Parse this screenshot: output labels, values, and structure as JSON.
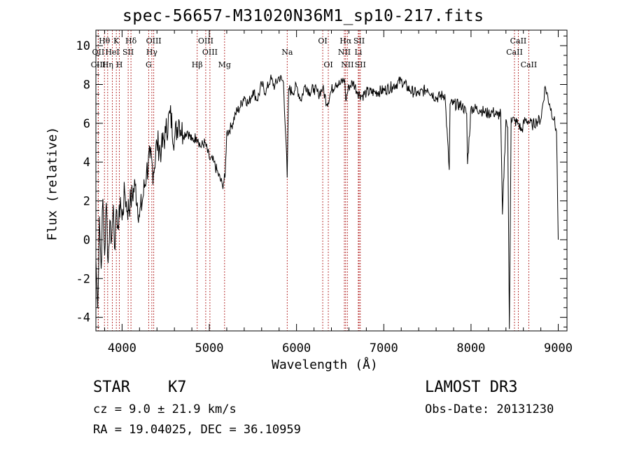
{
  "chart_data": {
    "type": "line",
    "title": "spec-56657-M31020N36M1_sp10-217.fits",
    "xlabel": "Wavelength (Å)",
    "ylabel": "Flux (relative)",
    "xlim": [
      3700,
      9100
    ],
    "ylim": [
      -4.7,
      10.8
    ],
    "xticks": [
      4000,
      5000,
      6000,
      7000,
      8000,
      9000
    ],
    "yticks": [
      -4,
      -2,
      0,
      2,
      4,
      6,
      8,
      10
    ],
    "grid": false,
    "series": [
      {
        "name": "flux",
        "x": [
          3700,
          3720,
          3740,
          3760,
          3780,
          3800,
          3820,
          3840,
          3860,
          3880,
          3900,
          3920,
          3940,
          3960,
          3980,
          4000,
          4030,
          4060,
          4100,
          4150,
          4200,
          4240,
          4280,
          4320,
          4360,
          4400,
          4450,
          4500,
          4550,
          4600,
          4650,
          4700,
          4750,
          4800,
          4850,
          4870,
          4900,
          4950,
          5000,
          5050,
          5100,
          5150,
          5180,
          5200,
          5250,
          5300,
          5350,
          5400,
          5450,
          5500,
          5550,
          5600,
          5650,
          5700,
          5750,
          5800,
          5850,
          5880,
          5893,
          5910,
          5950,
          6000,
          6050,
          6100,
          6150,
          6200,
          6250,
          6300,
          6350,
          6400,
          6450,
          6500,
          6550,
          6563,
          6600,
          6650,
          6700,
          6750,
          6800,
          6900,
          7000,
          7100,
          7200,
          7300,
          7400,
          7500,
          7600,
          7700,
          7750,
          7760,
          7800,
          7900,
          7950,
          7960,
          8000,
          8100,
          8150,
          8200,
          8250,
          8300,
          8340,
          8360,
          8400,
          8420,
          8440,
          8460,
          8500,
          8542,
          8580,
          8620,
          8662,
          8700,
          8750,
          8800,
          8850,
          8900,
          8950,
          8980,
          9000
        ],
        "values": [
          -1.0,
          -3.5,
          1.2,
          -1.5,
          2.1,
          -0.8,
          1.9,
          -1.2,
          1.0,
          0.0,
          1.8,
          -0.5,
          1.5,
          0.5,
          2.2,
          1.0,
          2.5,
          1.5,
          2.0,
          2.8,
          1.2,
          2.2,
          3.5,
          4.2,
          3.5,
          5.0,
          4.6,
          5.5,
          6.5,
          5.2,
          6.2,
          5.4,
          5.6,
          5.1,
          5.3,
          5.2,
          4.8,
          5.0,
          4.2,
          4.0,
          3.4,
          2.8,
          3.2,
          5.5,
          5.8,
          6.5,
          6.8,
          7.4,
          7.0,
          7.7,
          7.2,
          8.0,
          7.6,
          8.3,
          7.9,
          8.4,
          8.1,
          5.0,
          3.2,
          7.8,
          7.6,
          7.9,
          7.2,
          8.0,
          7.6,
          7.8,
          7.5,
          7.8,
          7.0,
          7.7,
          8.1,
          8.0,
          8.3,
          7.2,
          7.9,
          8.1,
          7.6,
          7.4,
          7.6,
          7.6,
          7.7,
          7.9,
          8.2,
          7.7,
          7.5,
          7.8,
          7.3,
          7.5,
          3.6,
          7.0,
          7.0,
          6.9,
          6.5,
          3.9,
          6.8,
          6.7,
          6.6,
          6.5,
          6.6,
          6.4,
          6.5,
          1.3,
          6.2,
          5.8,
          -4.6,
          6.3,
          6.1,
          6.0,
          5.6,
          6.2,
          6.1,
          5.9,
          6.1,
          6.2,
          7.9,
          7.0,
          6.2,
          5.6,
          0.0
        ]
      }
    ],
    "lines": [
      {
        "name": "Hθ",
        "wl": 3798,
        "pos": "top"
      },
      {
        "name": "OII",
        "wl": 3727,
        "pos": "mid"
      },
      {
        "name": "CIII",
        "wl": 3727,
        "pos": "low"
      },
      {
        "name": "Hη",
        "wl": 3835,
        "pos": "low"
      },
      {
        "name": "K",
        "wl": 3934,
        "pos": "top"
      },
      {
        "name": "HeI",
        "wl": 3889,
        "pos": "mid"
      },
      {
        "name": "H",
        "wl": 3969,
        "pos": "low"
      },
      {
        "name": "Hδ",
        "wl": 4102,
        "pos": "top"
      },
      {
        "name": "SII",
        "wl": 4070,
        "pos": "mid"
      },
      {
        "name": "OIII",
        "wl": 4363,
        "pos": "top"
      },
      {
        "name": "Hγ",
        "wl": 4341,
        "pos": "mid"
      },
      {
        "name": "G",
        "wl": 4305,
        "pos": "low"
      },
      {
        "name": "Hβ",
        "wl": 4861,
        "pos": "low"
      },
      {
        "name": "OIII",
        "wl": 4959,
        "pos": "top"
      },
      {
        "name": "OIII",
        "wl": 5007,
        "pos": "mid"
      },
      {
        "name": "Mg",
        "wl": 5175,
        "pos": "low"
      },
      {
        "name": "Na",
        "wl": 5893,
        "pos": "mid"
      },
      {
        "name": "OI",
        "wl": 6300,
        "pos": "top"
      },
      {
        "name": "OI",
        "wl": 6364,
        "pos": "low"
      },
      {
        "name": "Hα",
        "wl": 6563,
        "pos": "top"
      },
      {
        "name": "NII",
        "wl": 6548,
        "pos": "mid"
      },
      {
        "name": "NII",
        "wl": 6583,
        "pos": "low"
      },
      {
        "name": "SII",
        "wl": 6717,
        "pos": "top"
      },
      {
        "name": "Li",
        "wl": 6708,
        "pos": "mid"
      },
      {
        "name": "SII",
        "wl": 6731,
        "pos": "low"
      },
      {
        "name": "CaII",
        "wl": 8542,
        "pos": "top"
      },
      {
        "name": "CaII",
        "wl": 8498,
        "pos": "mid"
      },
      {
        "name": "CaII",
        "wl": 8662,
        "pos": "low"
      }
    ]
  },
  "info": {
    "object_class": "STAR",
    "subclass": "K7",
    "survey": "LAMOST DR3",
    "redshift_line": "cz = 9.0 ± 21.9 km/s",
    "obs_date_line": "Obs-Date: 20131230",
    "coords_line": "RA =  19.04025, DEC =  36.10959"
  }
}
